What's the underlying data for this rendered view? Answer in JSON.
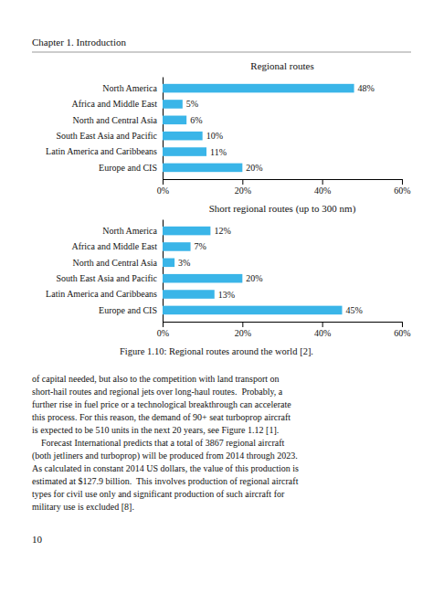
{
  "header_text": "Chapter 1. Introduction",
  "page_number": "10",
  "figure_caption": "Figure 1.10: Regional routes around the world [2].",
  "body_lines": [
    "of capital needed, but also to the competition with land transport on",
    "short-hail routes and regional jets over long-haul routes.  Probably, a",
    "further rise in fuel price or a technological breakthrough can accelerate",
    "this process. For this reason, the demand of 90+ seat turboprop aircraft",
    "is expected to be 510 units in the next 20 years, see Figure 1.12 [1].",
    "    Forecast International predicts that a total of 3867 regional aircraft",
    "(both jetliners and turboprop) will be produced from 2014 through 2023.",
    "As calculated in constant 2014 US dollars, the value of this production is",
    "estimated at $127.9 billion.  This involves production of regional aircraft",
    "types for civil use only and significant production of such aircraft for",
    "military use is excluded [8]."
  ],
  "chart_data": [
    {
      "type": "bar",
      "orientation": "horizontal",
      "title": "Regional routes",
      "categories": [
        "North America",
        "Africa and Middle East",
        "North and Central Asia",
        "South East Asia and Pacific",
        "Latin America and Caribbeans",
        "Europe and CIS"
      ],
      "values": [
        48,
        5,
        6,
        10,
        11,
        20
      ],
      "value_labels": [
        "48%",
        "5%",
        "6%",
        "10%",
        "11%",
        "20%"
      ],
      "data_labels": true,
      "color": "#3ab5e8",
      "grid": false,
      "xlim": [
        0,
        60
      ],
      "xticks": [
        {
          "value": 0,
          "label": "0%"
        },
        {
          "value": 20,
          "label": "20%"
        },
        {
          "value": 40,
          "label": "40%"
        },
        {
          "value": 60,
          "label": "60%"
        }
      ]
    },
    {
      "type": "bar",
      "orientation": "horizontal",
      "title": "Short regional routes (up to 300 nm)",
      "categories": [
        "North America",
        "Africa and Middle East",
        "North and Central Asia",
        "South East Asia and Pacific",
        "Latin America and Caribbeans",
        "Europe and CIS"
      ],
      "values": [
        12,
        7,
        3,
        20,
        13,
        45
      ],
      "value_labels": [
        "12%",
        "7%",
        "3%",
        "20%",
        "13%",
        "45%"
      ],
      "data_labels": true,
      "color": "#3ab5e8",
      "grid": false,
      "xlim": [
        0,
        60
      ],
      "xticks": [
        {
          "value": 0,
          "label": "0%"
        },
        {
          "value": 20,
          "label": "20%"
        },
        {
          "value": 40,
          "label": "40%"
        },
        {
          "value": 60,
          "label": "60%"
        }
      ]
    }
  ]
}
